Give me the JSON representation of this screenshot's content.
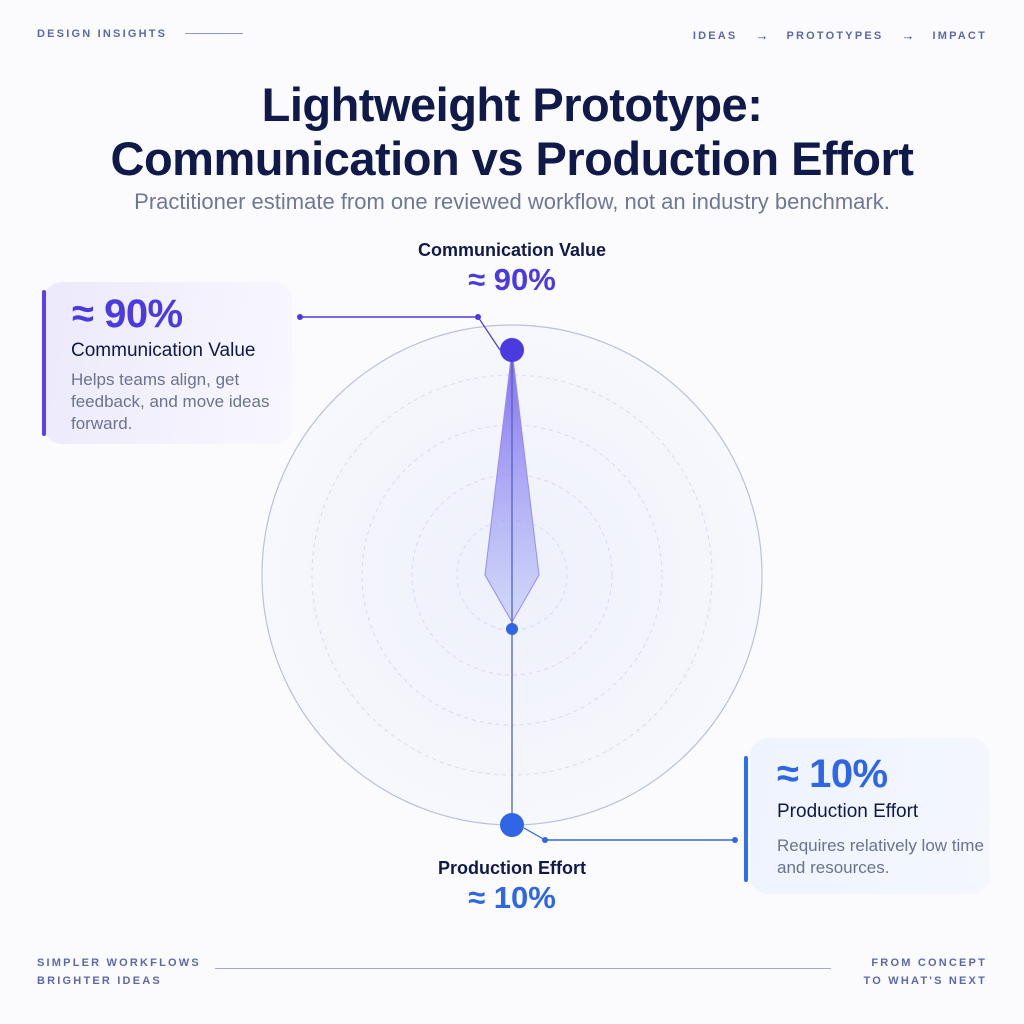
{
  "header": {
    "kicker": "DESIGN INSIGHTS",
    "breadcrumb": [
      "IDEAS",
      "PROTOTYPES",
      "IMPACT"
    ],
    "breadcrumb_separator": "→"
  },
  "title_lines": [
    "Lightweight Prototype:",
    "Communication vs Production Effort"
  ],
  "subtitle": "Practitioner estimate from one reviewed workflow, not an industry benchmark.",
  "chart_data": {
    "type": "radial",
    "title": "Lightweight Prototype: Communication vs Production Effort",
    "subtitle": "Practitioner estimate from one reviewed workflow, not an industry benchmark.",
    "axes": [
      {
        "name": "Communication Value",
        "value": 90,
        "label": "≈ 90%",
        "direction": "up",
        "color": "#4b3ae0"
      },
      {
        "name": "Production Effort",
        "value": 10,
        "label": "≈ 10%",
        "direction": "down",
        "color": "#2f66e6"
      }
    ],
    "range": [
      0,
      100
    ],
    "grid": true
  },
  "callouts": {
    "communication": {
      "value": "≈ 90%",
      "title": "Communication Value",
      "description": "Helps teams align, get feedback, and move ideas forward."
    },
    "production": {
      "value": "≈ 10%",
      "title": "Production Effort",
      "description": "Requires relatively low time and resources."
    }
  },
  "footer": {
    "left_lines": [
      "SIMPLER WORKFLOWS",
      "BRIGHTER IDEAS"
    ],
    "right_lines": [
      "FROM CONCEPT",
      "TO WHAT'S NEXT"
    ]
  },
  "colors": {
    "accent_purple": "#4b3ae0",
    "accent_blue": "#2f66e6",
    "ink": "#0f1a4a"
  }
}
